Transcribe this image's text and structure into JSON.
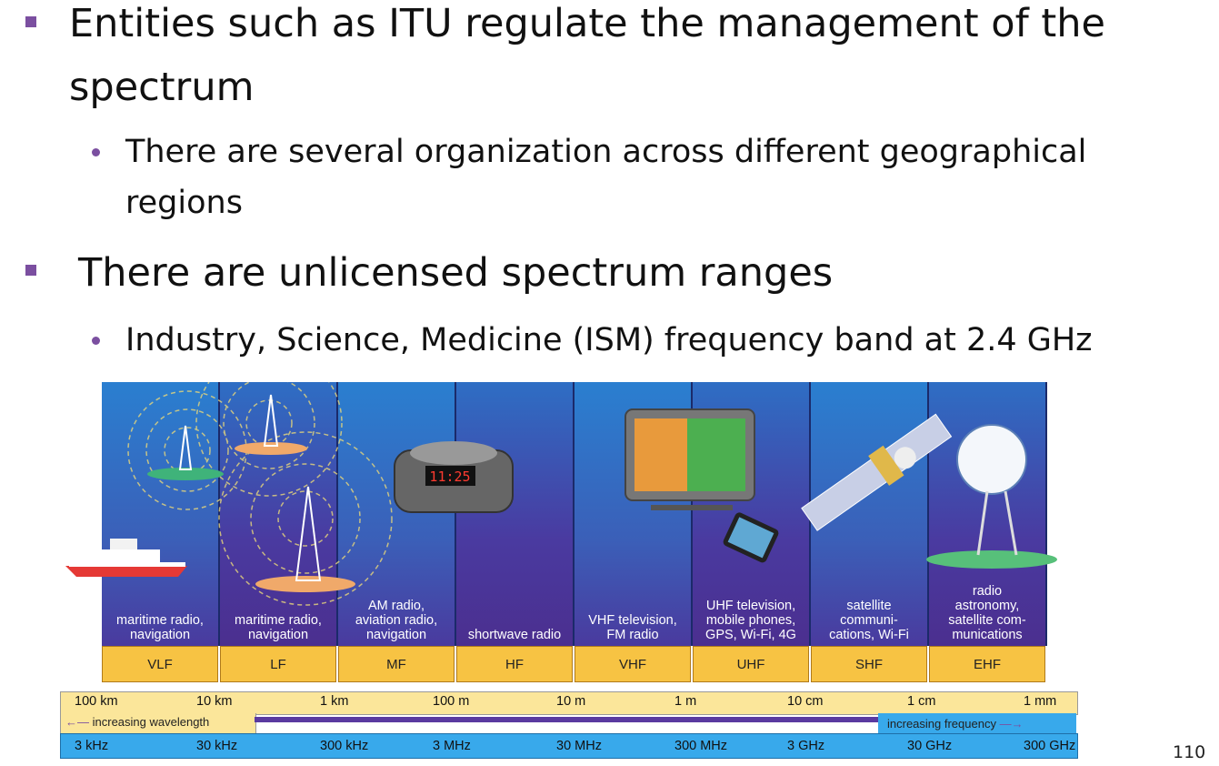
{
  "slide": {
    "bullets": [
      {
        "text": "Entities such as ITU regulate the management of the",
        "text2": "spectrum"
      },
      {
        "text": "There are several organization across different geographical",
        "text2": "regions"
      },
      {
        "text": "There are unlicensed spectrum ranges"
      },
      {
        "text": "Industry, Science, Medicine (ISM) frequency band at 2.4 GHz"
      }
    ],
    "slide_number": "110"
  },
  "figure": {
    "bands": [
      {
        "name": "VLF",
        "use": [
          "maritime radio,",
          "navigation"
        ]
      },
      {
        "name": "LF",
        "use": [
          "maritime radio,",
          "navigation"
        ]
      },
      {
        "name": "MF",
        "use": [
          "AM radio,",
          "aviation radio,",
          "navigation"
        ]
      },
      {
        "name": "HF",
        "use": [
          "shortwave radio"
        ]
      },
      {
        "name": "VHF",
        "use": [
          "VHF television,",
          "FM radio"
        ]
      },
      {
        "name": "UHF",
        "use": [
          "UHF television,",
          "mobile phones,",
          "GPS, Wi-Fi, 4G"
        ]
      },
      {
        "name": "SHF",
        "use": [
          "satellite",
          "communi-",
          "cations, Wi-Fi"
        ]
      },
      {
        "name": "EHF",
        "use": [
          "radio",
          "astronomy,",
          "satellite com-",
          "munications"
        ]
      }
    ],
    "wavelengths": [
      "100 km",
      "10 km",
      "1 km",
      "100 m",
      "10 m",
      "1 m",
      "10 cm",
      "1 cm",
      "1 mm"
    ],
    "frequencies": [
      "3 kHz",
      "30 kHz",
      "300 kHz",
      "3 MHz",
      "30 MHz",
      "300 MHz",
      "3 GHz",
      "30 GHz",
      "300 GHz"
    ],
    "wavelength_arrow": "increasing wavelength",
    "frequency_arrow": "increasing frequency",
    "clock_display": "11:25",
    "colors": {
      "light_blue": "#1f8fd9",
      "purple": "#4a3a9e",
      "band_gold": "#f7c343",
      "accent": "#7b4fa0"
    }
  }
}
